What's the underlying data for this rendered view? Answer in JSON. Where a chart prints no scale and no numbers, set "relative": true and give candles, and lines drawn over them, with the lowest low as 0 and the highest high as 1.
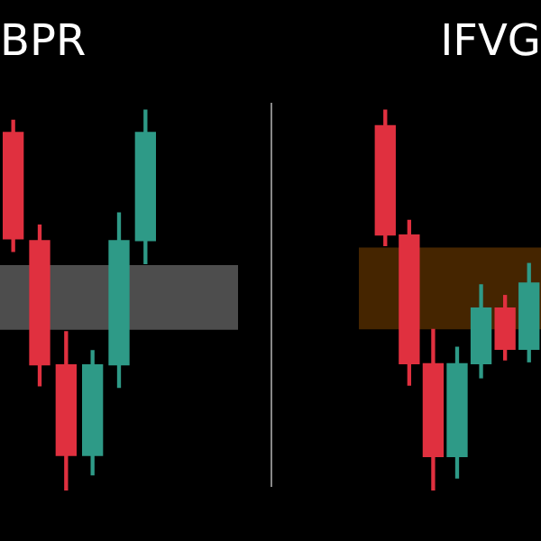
{
  "chart_data": [
    {
      "type": "candlestick",
      "title": "BPR",
      "relative": true,
      "tick_labels": false,
      "categories": [
        null,
        null,
        null,
        null,
        null,
        null
      ],
      "ohlc": [
        [
          0.94,
          0.972,
          0.628,
          0.661
        ],
        [
          0.656,
          0.697,
          0.275,
          0.33
        ],
        [
          0.33,
          0.417,
          0,
          0.092
        ],
        [
          0.092,
          0.367,
          0.041,
          0.33
        ],
        [
          0.33,
          0.729,
          0.271,
          0.656
        ],
        [
          0.656,
          1,
          0.596,
          0.94
        ]
      ],
      "colors": [
        "#e0303f",
        "#e0303f",
        "#e0303f",
        "#2e9a87",
        "#2e9a87",
        "#2e9a87"
      ],
      "bands": [
        {
          "axis": "y",
          "from": 0.422,
          "to": 0.592,
          "color": "#9a9a9a"
        }
      ]
    },
    {
      "type": "candlestick",
      "title": "IFVG",
      "relative": true,
      "tick_labels": false,
      "categories": [
        null,
        null,
        null,
        null,
        null,
        null,
        null
      ],
      "ohlc": [
        [
          0.958,
          1,
          0.643,
          0.671
        ],
        [
          0.671,
          0.709,
          0.277,
          0.333
        ],
        [
          0.333,
          0.423,
          0,
          0.089
        ],
        [
          0.089,
          0.376,
          0.033,
          0.333
        ],
        [
          0.333,
          0.54,
          0.296,
          0.479
        ],
        [
          0.479,
          0.512,
          0.343,
          0.371
        ],
        [
          0.371,
          0.596,
          0.338,
          0.545
        ]
      ],
      "colors": [
        "#e0303f",
        "#e0303f",
        "#e0303f",
        "#2e9a87",
        "#2e9a87",
        "#e0303f",
        "#2e9a87"
      ],
      "bands": [
        {
          "axis": "y",
          "from": 0.423,
          "to": 0.638,
          "color": "#8a4a00"
        }
      ]
    }
  ]
}
